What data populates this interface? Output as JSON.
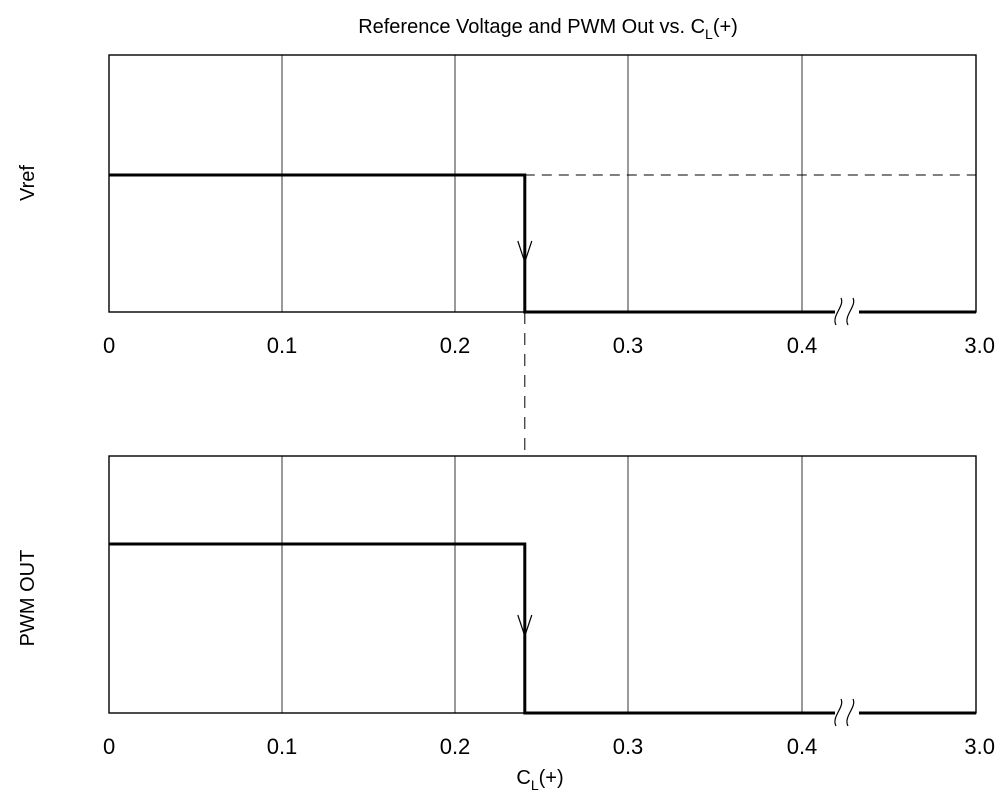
{
  "chart_data": {
    "type": "line",
    "title": {
      "main": "Reference Voltage and PWM Out vs. C",
      "sub": "L",
      "suffix": "(+)"
    },
    "xlabel": {
      "main": "C",
      "sub": "L",
      "suffix": "(+)"
    },
    "x_ticks": [
      "0",
      "0.1",
      "0.2",
      "0.3",
      "0.4",
      "3.0"
    ],
    "x_break_between": [
      "0.4",
      "3.0"
    ],
    "transition_x": 0.24,
    "grid": true,
    "panels": [
      {
        "ylabel": "Vref",
        "series": [
          {
            "x": [
              0,
              0.24,
              0.24,
              3.0
            ],
            "y": [
              1,
              1,
              0,
              0
            ],
            "style": "solid"
          },
          {
            "x": [
              0.24,
              3.0
            ],
            "y": [
              1,
              1
            ],
            "style": "dashed"
          }
        ]
      },
      {
        "ylabel": "PWM OUT",
        "series": [
          {
            "x": [
              0,
              0.24,
              0.24,
              3.0
            ],
            "y": [
              1,
              1,
              0,
              0
            ],
            "style": "solid"
          }
        ]
      }
    ]
  }
}
